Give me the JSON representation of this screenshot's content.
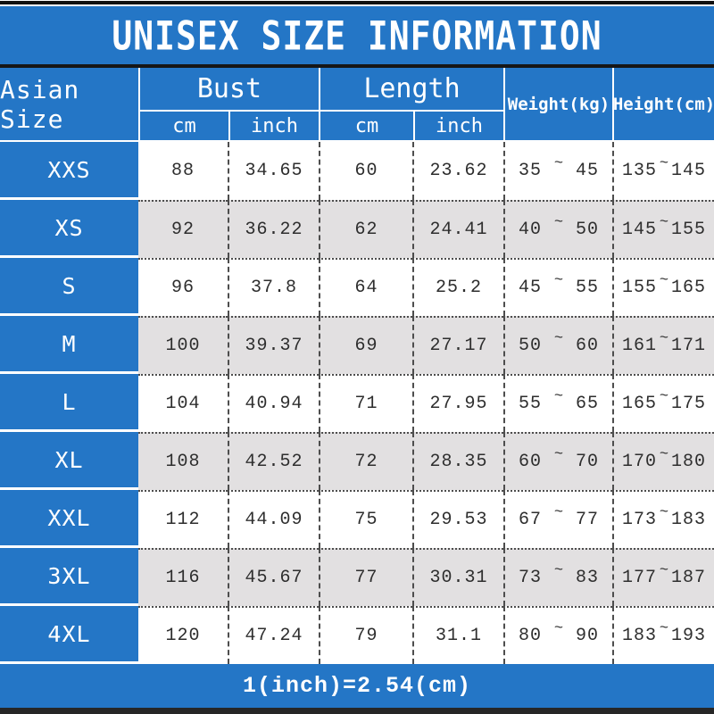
{
  "title": "UNISEX SIZE INFORMATION",
  "footer_note": "1(inch)=2.54(cm)",
  "colors": {
    "blue": "#2476c6",
    "gray_row": "#e2e0e1",
    "top_bar": "#111111",
    "bottom_bar": "#262626"
  },
  "table": {
    "size_col_header": "Asian Size",
    "bust": {
      "label": "Bust",
      "sub": [
        "cm",
        "inch"
      ]
    },
    "length": {
      "label": "Length",
      "sub": [
        "cm",
        "inch"
      ]
    },
    "weight_header": "Weight(kg)",
    "height_header": "Height(cm)",
    "tilde": "~",
    "rows": [
      {
        "size": "XXS",
        "bust_cm": "88",
        "bust_inch": "34.65",
        "length_cm": "60",
        "length_inch": "23.62",
        "weight_low": "35",
        "weight_high": "45",
        "height_low": "135",
        "height_high": "145"
      },
      {
        "size": "XS",
        "bust_cm": "92",
        "bust_inch": "36.22",
        "length_cm": "62",
        "length_inch": "24.41",
        "weight_low": "40",
        "weight_high": "50",
        "height_low": "145",
        "height_high": "155"
      },
      {
        "size": "S",
        "bust_cm": "96",
        "bust_inch": "37.8",
        "length_cm": "64",
        "length_inch": "25.2",
        "weight_low": "45",
        "weight_high": "55",
        "height_low": "155",
        "height_high": "165"
      },
      {
        "size": "M",
        "bust_cm": "100",
        "bust_inch": "39.37",
        "length_cm": "69",
        "length_inch": "27.17",
        "weight_low": "50",
        "weight_high": "60",
        "height_low": "161",
        "height_high": "171"
      },
      {
        "size": "L",
        "bust_cm": "104",
        "bust_inch": "40.94",
        "length_cm": "71",
        "length_inch": "27.95",
        "weight_low": "55",
        "weight_high": "65",
        "height_low": "165",
        "height_high": "175"
      },
      {
        "size": "XL",
        "bust_cm": "108",
        "bust_inch": "42.52",
        "length_cm": "72",
        "length_inch": "28.35",
        "weight_low": "60",
        "weight_high": "70",
        "height_low": "170",
        "height_high": "180"
      },
      {
        "size": "XXL",
        "bust_cm": "112",
        "bust_inch": "44.09",
        "length_cm": "75",
        "length_inch": "29.53",
        "weight_low": "67",
        "weight_high": "77",
        "height_low": "173",
        "height_high": "183"
      },
      {
        "size": "3XL",
        "bust_cm": "116",
        "bust_inch": "45.67",
        "length_cm": "77",
        "length_inch": "30.31",
        "weight_low": "73",
        "weight_high": "83",
        "height_low": "177",
        "height_high": "187"
      },
      {
        "size": "4XL",
        "bust_cm": "120",
        "bust_inch": "47.24",
        "length_cm": "79",
        "length_inch": "31.1",
        "weight_low": "80",
        "weight_high": "90",
        "height_low": "183",
        "height_high": "193"
      }
    ]
  },
  "chart_data": {
    "type": "table",
    "title": "UNISEX SIZE INFORMATION",
    "columns": [
      "Asian Size",
      "Bust cm",
      "Bust inch",
      "Length cm",
      "Length inch",
      "Weight(kg)",
      "Height(cm)"
    ],
    "rows": [
      [
        "XXS",
        "88",
        "34.65",
        "60",
        "23.62",
        "35~45",
        "135~145"
      ],
      [
        "XS",
        "92",
        "36.22",
        "62",
        "24.41",
        "40~50",
        "145~155"
      ],
      [
        "S",
        "96",
        "37.8",
        "64",
        "25.2",
        "45~55",
        "155~165"
      ],
      [
        "M",
        "100",
        "39.37",
        "69",
        "27.17",
        "50~60",
        "161~171"
      ],
      [
        "L",
        "104",
        "40.94",
        "71",
        "27.95",
        "55~65",
        "165~175"
      ],
      [
        "XL",
        "108",
        "42.52",
        "72",
        "28.35",
        "60~70",
        "170~180"
      ],
      [
        "XXL",
        "112",
        "44.09",
        "75",
        "29.53",
        "67~77",
        "173~183"
      ],
      [
        "3XL",
        "116",
        "45.67",
        "77",
        "30.31",
        "73~83",
        "177~187"
      ],
      [
        "4XL",
        "120",
        "47.24",
        "79",
        "31.1",
        "80~90",
        "183~193"
      ]
    ],
    "note": "1(inch)=2.54(cm)"
  }
}
